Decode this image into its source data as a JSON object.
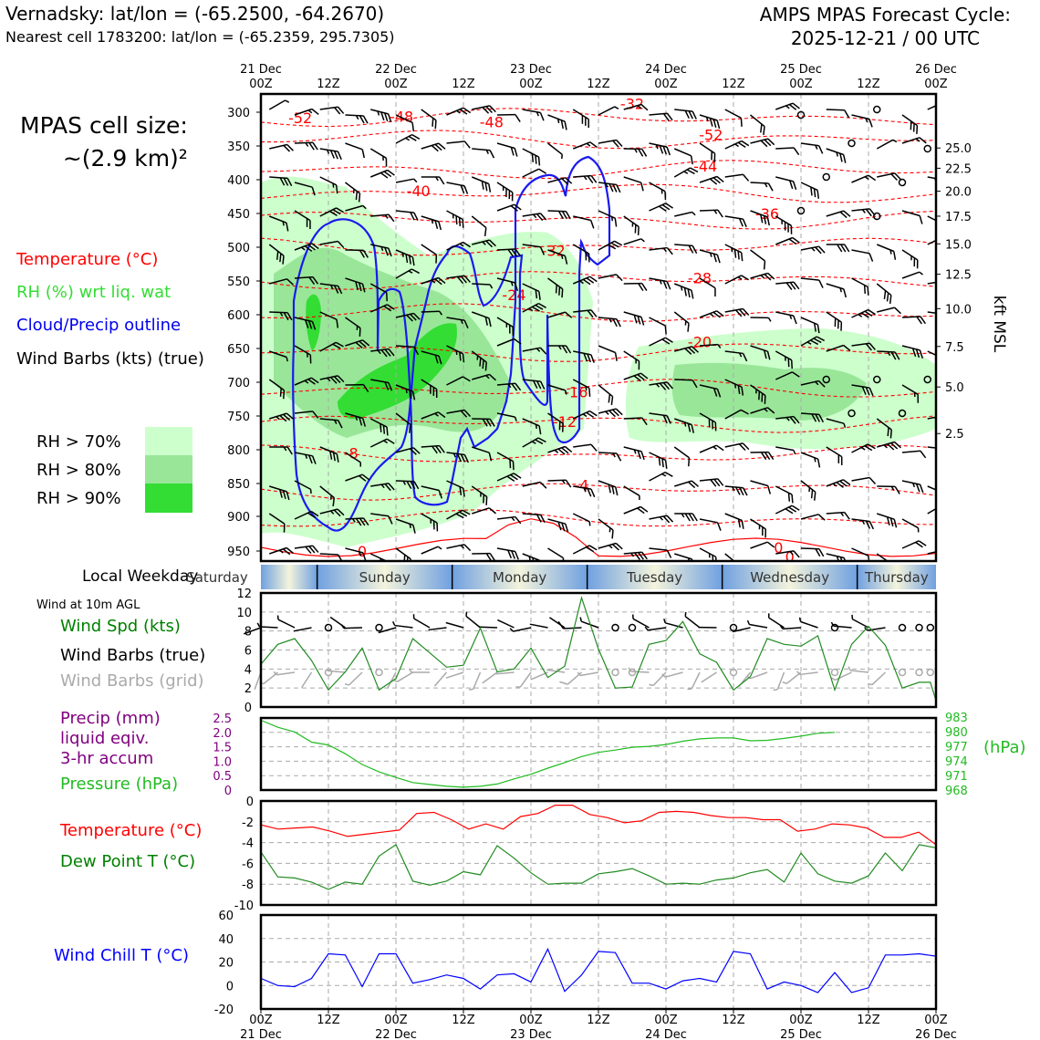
{
  "header": {
    "station_line": "Vernadsky: lat/lon = (-65.2500, -64.2670)",
    "cell_line": "Nearest cell 1783200: lat/lon = (-65.2359, 295.7305)",
    "forecast_title": "AMPS MPAS Forecast Cycle:",
    "forecast_cycle": "2025-12-21 / 00 UTC"
  },
  "cell_size": {
    "line1": "MPAS cell size:",
    "line2": "~(2.9 km)²"
  },
  "legend": {
    "temperature": "Temperature (°C)",
    "rh": "RH (%) wrt liq. wat",
    "cloud": "Cloud/Precip outline",
    "wind": "Wind Barbs (kts) (true)",
    "rh70": "RH > 70%",
    "rh80": "RH > 80%",
    "rh90": "RH > 90%"
  },
  "colors": {
    "rh70": "#ccffcc",
    "rh80": "#99e699",
    "rh90": "#33dd33",
    "temp": "#ff0000",
    "cloud": "#0000ee",
    "green": "#008000",
    "pressure": "#22bb22",
    "precip": "#800080",
    "chill": "#0000ff"
  },
  "time_axis": {
    "top": [
      [
        "21 Dec",
        "00Z"
      ],
      [
        "",
        "12Z"
      ],
      [
        "22 Dec",
        "00Z"
      ],
      [
        "",
        "12Z"
      ],
      [
        "23 Dec",
        "00Z"
      ],
      [
        "",
        "12Z"
      ],
      [
        "24 Dec",
        "00Z"
      ],
      [
        "",
        "12Z"
      ],
      [
        "25 Dec",
        "00Z"
      ],
      [
        "",
        "12Z"
      ],
      [
        "26 Dec",
        "00Z"
      ]
    ],
    "bottom": [
      [
        "00Z",
        "21 Dec"
      ],
      [
        "12Z",
        ""
      ],
      [
        "00Z",
        "22 Dec"
      ],
      [
        "12Z",
        ""
      ],
      [
        "00Z",
        "23 Dec"
      ],
      [
        "12Z",
        ""
      ],
      [
        "00Z",
        "24 Dec"
      ],
      [
        "12Z",
        ""
      ],
      [
        "00Z",
        "25 Dec"
      ],
      [
        "12Z",
        ""
      ],
      [
        "00Z",
        "26 Dec"
      ]
    ]
  },
  "weekday": {
    "label": "Local Weekday",
    "days": [
      "Saturday",
      "Sunday",
      "Monday",
      "Tuesday",
      "Wednesday",
      "Thursday"
    ]
  },
  "panels": {
    "wind_title": "Wind at 10m AGL",
    "wind_spd": "Wind Spd (kts)",
    "wind_barbs_true": "Wind Barbs (true)",
    "wind_barbs_grid": "Wind Barbs (grid)",
    "precip1": "Precip (mm)",
    "precip2": "liquid eqiv.",
    "precip3": "3-hr accum",
    "pressure": "Pressure (hPa)",
    "hpa": "(hPa)",
    "temp": "Temperature (°C)",
    "dew": "Dew Point T (°C)",
    "chill": "Wind Chill T (°C)"
  },
  "chart_data": {
    "type": "line",
    "x_hours": [
      0,
      6,
      12,
      18,
      24,
      30,
      36,
      42,
      48,
      54,
      60,
      66,
      72,
      78,
      84,
      90,
      96,
      102,
      108,
      114,
      120
    ],
    "cross_section": {
      "pressure_levels": [
        300,
        350,
        400,
        450,
        500,
        550,
        600,
        650,
        700,
        750,
        800,
        850,
        900,
        950
      ],
      "ylim": [
        955,
        285
      ],
      "kft_labels": [
        "25.0",
        "22.5",
        "20.0",
        "17.5",
        "15.0",
        "12.5",
        "10.0",
        "7.5",
        "5.0",
        "2.5"
      ],
      "kft_levels_hpa": [
        353,
        383,
        417,
        454,
        495,
        540,
        591,
        647,
        707,
        776
      ],
      "ylabel_right": "kft MSL",
      "isotherm_labels": [
        "-52",
        "-48",
        "-48",
        "-32",
        "-52",
        "-44",
        "-40",
        "-36",
        "-32",
        "-28",
        "-24",
        "-20",
        "-16",
        "-12",
        "-8",
        "-4",
        "0",
        "0",
        "0"
      ],
      "isotherm_label_pos_hr_hpa": [
        [
          7,
          308
        ],
        [
          25,
          306
        ],
        [
          41,
          314
        ],
        [
          66,
          287
        ],
        [
          80,
          333
        ],
        [
          79,
          380
        ],
        [
          28,
          416
        ],
        [
          90,
          450
        ],
        [
          52,
          505
        ],
        [
          78,
          545
        ],
        [
          45,
          570
        ],
        [
          78,
          640
        ],
        [
          56,
          714
        ],
        [
          54,
          758
        ],
        [
          16,
          805
        ],
        [
          57,
          852
        ],
        [
          18,
          950
        ],
        [
          92,
          945
        ],
        [
          94,
          958
        ]
      ]
    },
    "wind_speed_kts": [
      4.5,
      6.6,
      7.2,
      4.9,
      1.8,
      3.7,
      6.2,
      1.8,
      3.0,
      7.2,
      5.7,
      4.2,
      4.4,
      8.3,
      3.7,
      4.0,
      6.2,
      3.1,
      4.3,
      11.5,
      6.1,
      2.0,
      2.1,
      6.6,
      7.0,
      9.0,
      5.6,
      4.7,
      1.8,
      3.2,
      7.2,
      6.6,
      6.4,
      7.5,
      1.8,
      6.6,
      8.5,
      6.5,
      2.0,
      2.6,
      2.6,
      0.7
    ],
    "wind_speed_x_hours": [
      0,
      3,
      6,
      9,
      12,
      15,
      18,
      21,
      24,
      27,
      30,
      33,
      36,
      39,
      42,
      45,
      48,
      51,
      54,
      57,
      60,
      63,
      66,
      69,
      72,
      75,
      78,
      81,
      84,
      87,
      90,
      93,
      96,
      99,
      102,
      105,
      108,
      111,
      114,
      117,
      119,
      120
    ],
    "wind_ylim": [
      0,
      12
    ],
    "precip_mm": [
      0,
      0,
      0,
      0,
      0,
      0,
      0,
      0,
      0,
      0,
      0,
      0,
      0,
      0,
      0,
      0,
      0,
      0,
      0,
      0,
      0
    ],
    "precip_ylim": [
      0,
      2.5
    ],
    "pressure_hpa": [
      983,
      981.5,
      980.5,
      978.3,
      977.7,
      975.8,
      973.5,
      971.9,
      970.7,
      969.6,
      969.2,
      968.8,
      968.6,
      968.8,
      969.3,
      970.4,
      971.4,
      972.7,
      973.9,
      975.2,
      976.1,
      976.6,
      977.2,
      977.4,
      977.8,
      978.5,
      979.0,
      979.2,
      979.2,
      978.6,
      978.7,
      979.1,
      979.6,
      980.2,
      980.4
    ],
    "pressure_x_hours": [
      0,
      3,
      6,
      9,
      12,
      15,
      18,
      21,
      24,
      27,
      30,
      33,
      36,
      39,
      42,
      45,
      48,
      51,
      54,
      57,
      60,
      63,
      66,
      69,
      72,
      75,
      78,
      81,
      84,
      87,
      90,
      93,
      96,
      99,
      102
    ],
    "pressure_ticks": [
      "983",
      "980",
      "977",
      "974",
      "971",
      "968"
    ],
    "pressure_ylim": [
      968,
      983.5
    ],
    "temperature_c": [
      -2.3,
      -2.7,
      -2.6,
      -2.5,
      -2.9,
      -3.4,
      -3.2,
      -3.0,
      -2.8,
      -1.2,
      -1.1,
      -1.8,
      -2.7,
      -2.2,
      -2.7,
      -1.5,
      -1.2,
      -0.4,
      -0.4,
      -1.3,
      -1.6,
      -2.1,
      -1.9,
      -1.1,
      -1.0,
      -1.1,
      -1.4,
      -1.6,
      -1.6,
      -1.8,
      -1.8,
      -2.9,
      -2.7,
      -2.2,
      -2.3,
      -2.6,
      -3.5,
      -3.5,
      -3.0,
      -4.2
    ],
    "dewpoint_c": [
      -4.9,
      -7.3,
      -7.4,
      -7.8,
      -8.5,
      -7.8,
      -8.0,
      -5.3,
      -4.2,
      -7.7,
      -8.1,
      -7.7,
      -6.8,
      -7.1,
      -4.3,
      -5.5,
      -6.9,
      -8.0,
      -7.9,
      -7.9,
      -7.0,
      -6.8,
      -6.5,
      -7.2,
      -8.0,
      -7.9,
      -8.0,
      -7.6,
      -7.4,
      -6.9,
      -6.6,
      -7.8,
      -5.0,
      -7.0,
      -7.7,
      -7.9,
      -7.2,
      -5.0,
      -6.7,
      -4.2,
      -4.5
    ],
    "td_x_hours": [
      0,
      3,
      6,
      9,
      12,
      15,
      18,
      21,
      24,
      27,
      30,
      33,
      36,
      39,
      42,
      45,
      48,
      51,
      54,
      57,
      60,
      63,
      66,
      69,
      72,
      75,
      78,
      81,
      84,
      87,
      90,
      93,
      96,
      99,
      102,
      105,
      108,
      111,
      114,
      117,
      120
    ],
    "temp_ylim": [
      -10,
      0
    ],
    "wind_chill_c": [
      6,
      0,
      -1,
      6,
      27,
      26,
      -1,
      27,
      27,
      2,
      5,
      9,
      6,
      -3,
      9,
      10,
      3,
      31,
      -5,
      9,
      29,
      28,
      2,
      2,
      -3,
      4,
      6,
      3,
      29,
      27,
      -3,
      3,
      0,
      -6,
      11,
      -6,
      -2,
      26,
      26,
      27,
      25
    ],
    "chill_ylim": [
      -20,
      60
    ],
    "wind_yticks": [
      "0",
      "2",
      "4",
      "6",
      "8",
      "10",
      "12"
    ],
    "precip_yticks": [
      "0",
      "0.5",
      "1.0",
      "1.5",
      "2.0",
      "2.5"
    ],
    "temp_yticks": [
      "0",
      "-2",
      "-4",
      "-6",
      "-8",
      "-10"
    ],
    "chill_yticks": [
      "60",
      "40",
      "20",
      "0",
      "-20"
    ]
  }
}
